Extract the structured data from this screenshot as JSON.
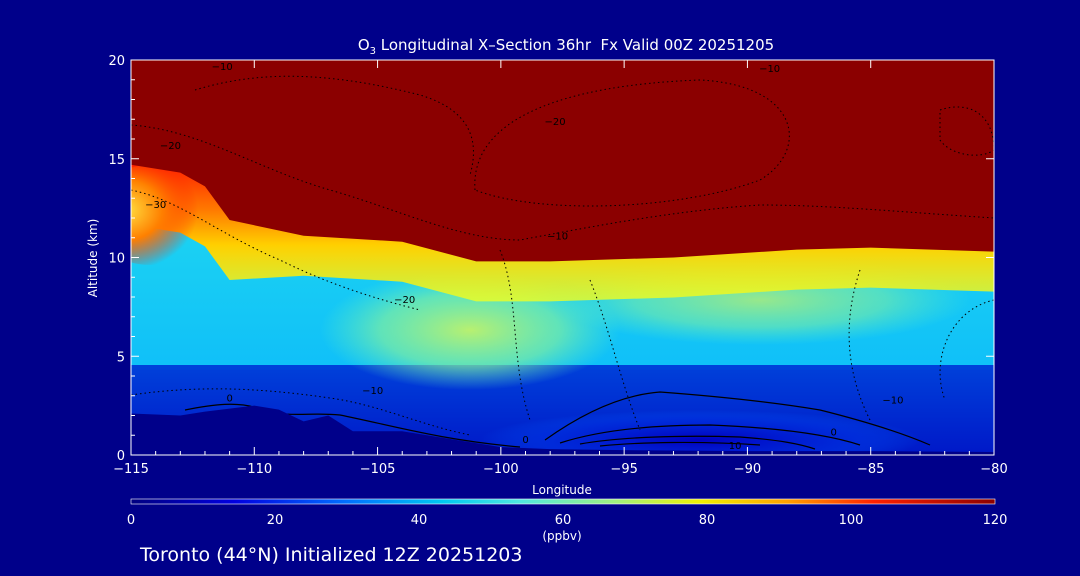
{
  "chart_data": {
    "type": "heatmap",
    "title_prefix": "O",
    "title_subscript": "3",
    "title_suffix": " Longitudinal X–Section 36hr  Fx Valid 00Z 20251205",
    "xlabel": "Longitude",
    "ylabel": "Altitude (km)",
    "xlim": [
      -115,
      -80
    ],
    "ylim": [
      0,
      20
    ],
    "xticks": [
      -115,
      -110,
      -105,
      -100,
      -95,
      -90,
      -85,
      -80
    ],
    "xtick_labels": [
      "−115",
      "−110",
      "−105",
      "−100",
      "−95",
      "−90",
      "−85",
      "−80"
    ],
    "yticks": [
      0,
      5,
      10,
      15,
      20
    ],
    "ytick_labels": [
      "0",
      "5",
      "10",
      "15",
      "20"
    ],
    "tropopause_height_km": [
      [
        -115,
        14.7
      ],
      [
        -113,
        14.3
      ],
      [
        -112,
        13.6
      ],
      [
        -111,
        11.9
      ],
      [
        -108,
        11.1
      ],
      [
        -104,
        10.8
      ],
      [
        -101,
        9.8
      ],
      [
        -98,
        9.8
      ],
      [
        -93,
        10.0
      ],
      [
        -88,
        10.4
      ],
      [
        -85,
        10.5
      ],
      [
        -80,
        10.3
      ]
    ],
    "terrain_height_km": [
      [
        -115,
        2.1
      ],
      [
        -113,
        2.0
      ],
      [
        -112,
        2.2
      ],
      [
        -110,
        2.5
      ],
      [
        -109,
        2.3
      ],
      [
        -108,
        1.7
      ],
      [
        -107,
        2.0
      ],
      [
        -106,
        1.2
      ],
      [
        -104,
        1.2
      ],
      [
        -103,
        1.0
      ],
      [
        -102,
        0.8
      ],
      [
        -100,
        0.4
      ],
      [
        -98,
        0.3
      ],
      [
        -95,
        0.25
      ],
      [
        -90,
        0.2
      ],
      [
        -85,
        0.2
      ],
      [
        -80,
        0.15
      ]
    ],
    "contour_labels": [
      {
        "x": -111.3,
        "y": 19.5,
        "text": "−10"
      },
      {
        "x": -89.1,
        "y": 19.4,
        "text": "−10"
      },
      {
        "x": -97.8,
        "y": 16.7,
        "text": "−20"
      },
      {
        "x": -113.4,
        "y": 15.5,
        "text": "−20"
      },
      {
        "x": -114.0,
        "y": 12.5,
        "text": "−30"
      },
      {
        "x": -97.7,
        "y": 10.9,
        "text": "−10"
      },
      {
        "x": -103.9,
        "y": 7.7,
        "text": "−20"
      },
      {
        "x": -105.2,
        "y": 3.1,
        "text": "−10"
      },
      {
        "x": -84.1,
        "y": 2.6,
        "text": "−10"
      },
      {
        "x": -111.0,
        "y": 2.7,
        "text": "0"
      },
      {
        "x": -99.0,
        "y": 0.6,
        "text": "0"
      },
      {
        "x": -86.5,
        "y": 1.0,
        "text": "0"
      },
      {
        "x": -90.5,
        "y": 0.3,
        "text": "10"
      }
    ],
    "colorbar": {
      "ticks": [
        0,
        20,
        40,
        60,
        80,
        100,
        120
      ],
      "units": "(ppbv)",
      "colors": [
        "#000080",
        "#0000e0",
        "#0070ff",
        "#00c8f0",
        "#50e8e0",
        "#a0f080",
        "#f0f000",
        "#ffa000",
        "#ff2000",
        "#8b0000"
      ]
    }
  },
  "footer": {
    "caption": "Toronto (44°N) Initialized 12Z 20251203"
  }
}
